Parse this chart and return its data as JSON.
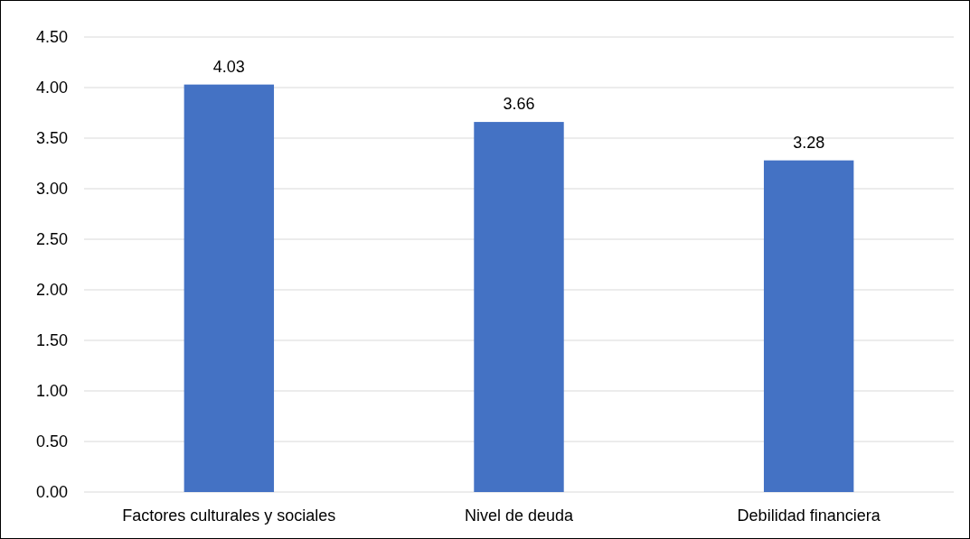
{
  "chart_data": {
    "type": "bar",
    "categories": [
      "Factores culturales y sociales",
      "Nivel de deuda",
      "Debilidad financiera"
    ],
    "values": [
      4.03,
      3.66,
      3.28
    ],
    "color": "#4472c4",
    "ylim": [
      0,
      4.5
    ],
    "yticks": [
      {
        "value": 0,
        "label": "0.00"
      },
      {
        "value": 0.5,
        "label": "0.50"
      },
      {
        "value": 1,
        "label": "1.00"
      },
      {
        "value": 1.5,
        "label": "1.50"
      },
      {
        "value": 2,
        "label": "2.00"
      },
      {
        "value": 2.5,
        "label": "2.50"
      },
      {
        "value": 3,
        "label": "3.00"
      },
      {
        "value": 3.5,
        "label": "3.50"
      },
      {
        "value": 4,
        "label": "4.00"
      },
      {
        "value": 4.5,
        "label": "4.50"
      }
    ],
    "grid": "y",
    "data_labels": true
  }
}
